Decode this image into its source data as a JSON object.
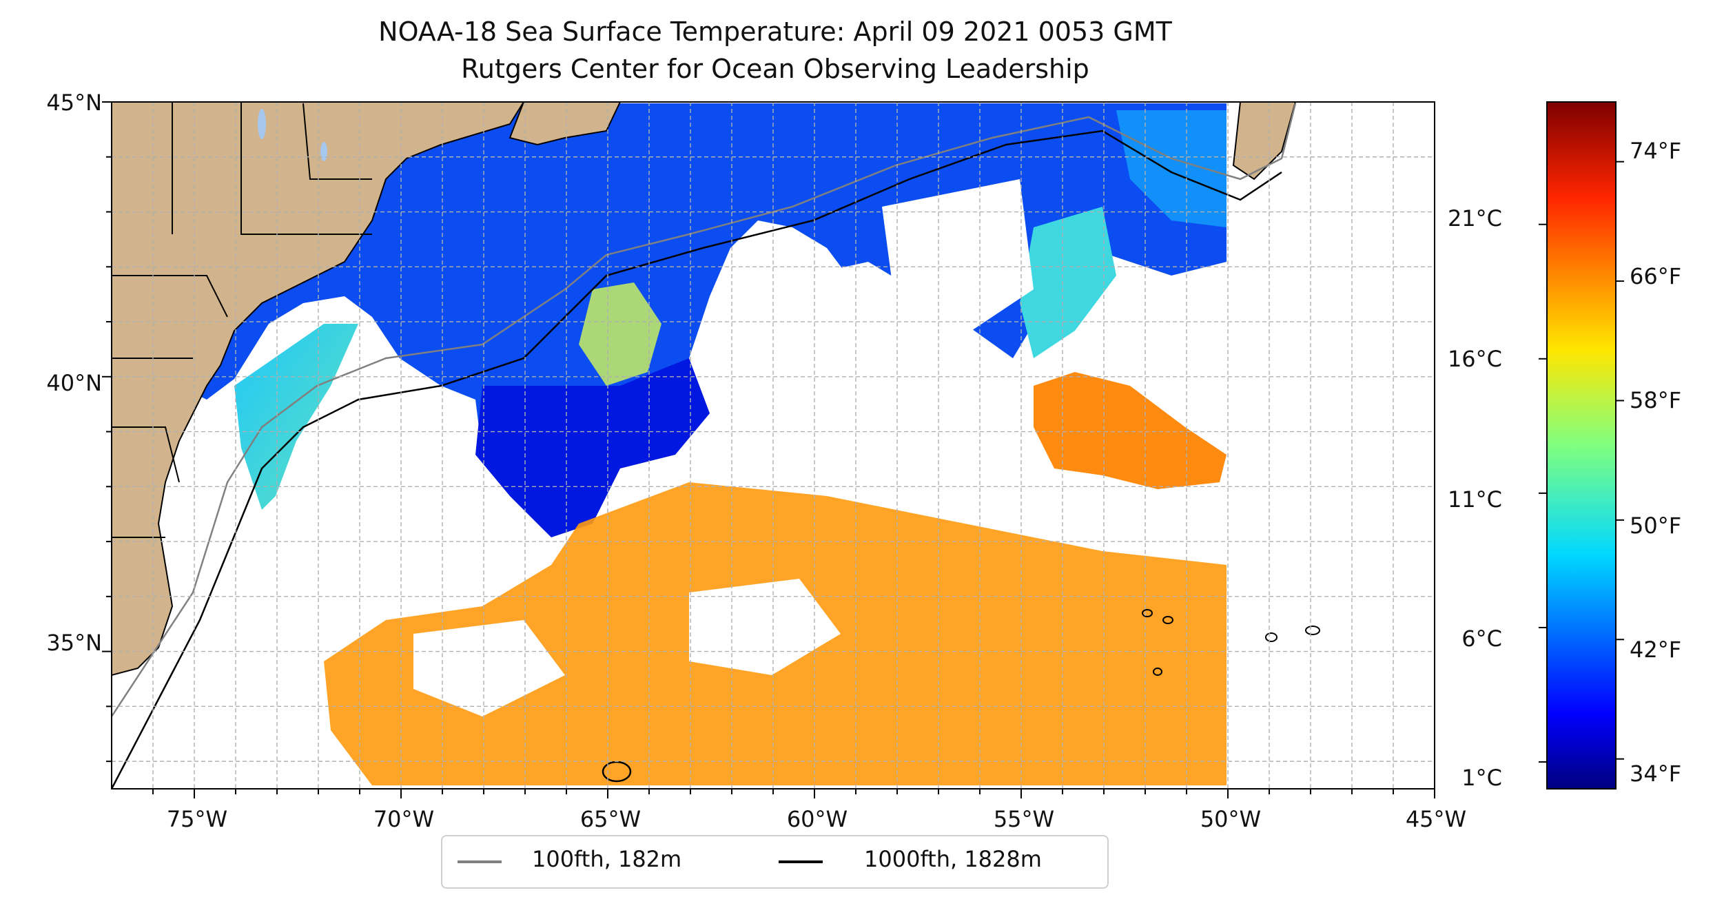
{
  "title": {
    "line1": "NOAA-18 Sea Surface Temperature: April 09 2021 0053 GMT",
    "line2": "Rutgers Center for Ocean Observing Leadership"
  },
  "chart_data": {
    "type": "heatmap",
    "map_extent": {
      "lon": [
        -77,
        -45
      ],
      "lat": [
        32.5,
        45
      ]
    },
    "x_ticks": [
      "75°W",
      "70°W",
      "65°W",
      "60°W",
      "55°W",
      "50°W",
      "45°W"
    ],
    "y_ticks": [
      "45°N",
      "40°N",
      "35°N"
    ],
    "grid": true,
    "colorbar": {
      "colormap": "jet",
      "celsius_ticks": [
        "21°C",
        "16°C",
        "11°C",
        "6°C",
        "1°C"
      ],
      "fahrenheit_ticks": [
        "74°F",
        "66°F",
        "58°F",
        "50°F",
        "42°F",
        "34°F"
      ],
      "range_f": [
        32,
        78
      ]
    },
    "legend": {
      "placement": "bottom-center",
      "entries": [
        {
          "label": "100fth, 182m",
          "color": "#808080"
        },
        {
          "label": "1000fth, 1828m",
          "color": "#000000"
        }
      ]
    },
    "colors": {
      "land": "#d2b48c",
      "lakes": "#a6c8ee",
      "grid": "#b0b0b0"
    }
  }
}
